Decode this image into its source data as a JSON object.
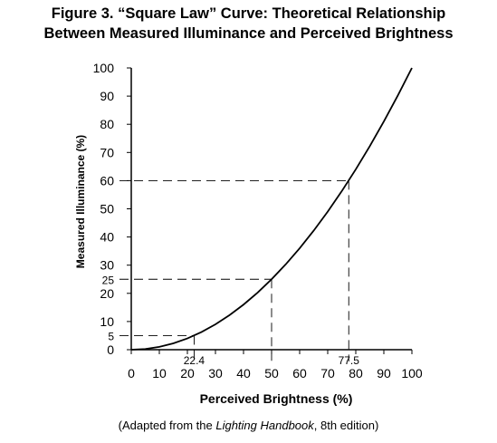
{
  "title": {
    "line1": "Figure 3. “Square Law” Curve: Theoretical Relationship",
    "line2": "Between Measured Illuminance and Perceived Brightness"
  },
  "caption": {
    "prefix": "(Adapted from the ",
    "book": "Lighting Handbook",
    "suffix": ", 8th edition)"
  },
  "chart_data": {
    "type": "line",
    "title": "Figure 3. “Square Law” Curve: Theoretical Relationship Between Measured Illuminance and Perceived Brightness",
    "xlabel": "Perceived Brightness (%)",
    "ylabel": "Measured Illuminance (%)",
    "xlim": [
      0,
      100
    ],
    "ylim": [
      0,
      100
    ],
    "x_ticks": [
      "0",
      "10",
      "20",
      "30",
      "40",
      "50",
      "60",
      "70",
      "80",
      "90",
      "100"
    ],
    "y_ticks": [
      "0",
      "10",
      "20",
      "30",
      "40",
      "50",
      "60",
      "70",
      "80",
      "90",
      "100"
    ],
    "grid": false,
    "series": [
      {
        "x": [
          0,
          5,
          10,
          15,
          20,
          25,
          30,
          35,
          40,
          45,
          50,
          55,
          60,
          65,
          70,
          75,
          80,
          85,
          90,
          95,
          100
        ],
        "y": [
          0,
          0.25,
          1,
          2.25,
          4,
          6.25,
          9,
          12.25,
          16,
          20.25,
          25,
          30.25,
          36,
          42.25,
          49,
          56.25,
          64,
          72.25,
          81,
          90.25,
          100
        ]
      }
    ],
    "reference_points": [
      {
        "x": 22.4,
        "y": 5,
        "x_label": "22.4",
        "y_label": "5"
      },
      {
        "x": 50,
        "y": 25,
        "x_label": "",
        "y_label": "25"
      },
      {
        "x": 77.5,
        "y": 60,
        "x_label": "77.5",
        "y_label": ""
      }
    ]
  }
}
